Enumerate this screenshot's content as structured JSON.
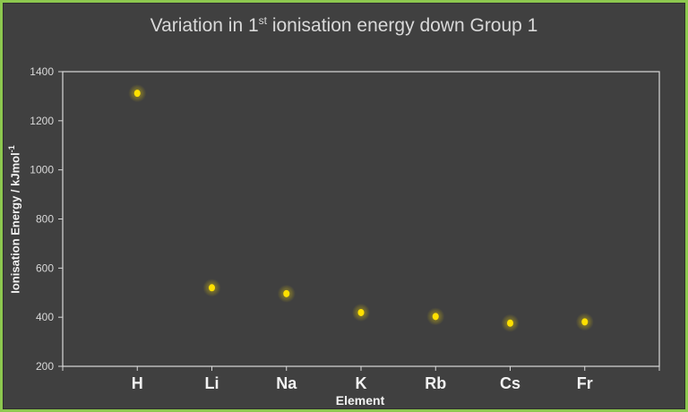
{
  "chart_data": {
    "type": "scatter",
    "title": "Variation in 1st ionisation energy down Group 1",
    "title_parts": {
      "pre": "Variation in 1",
      "sup": "st",
      "post": " ionisation energy down  Group 1"
    },
    "xlabel": "Element",
    "ylabel": "Ionisation Energy / kJmol-1",
    "ylabel_parts": {
      "main": "Ionisation Energy / kJmol",
      "sup": "-1"
    },
    "categories": [
      "H",
      "Li",
      "Na",
      "K",
      "Rb",
      "Cs",
      "Fr"
    ],
    "values": [
      1312,
      520,
      496,
      419,
      403,
      376,
      381
    ],
    "ylim": [
      200,
      1400
    ],
    "yticks": [
      200,
      400,
      600,
      800,
      1000,
      1200,
      1400
    ],
    "grid": false,
    "legend": "none",
    "colors": {
      "marker": "#ffe000",
      "background": "#404040",
      "border": "#8dc84f",
      "axis": "#d9d9d9"
    }
  }
}
